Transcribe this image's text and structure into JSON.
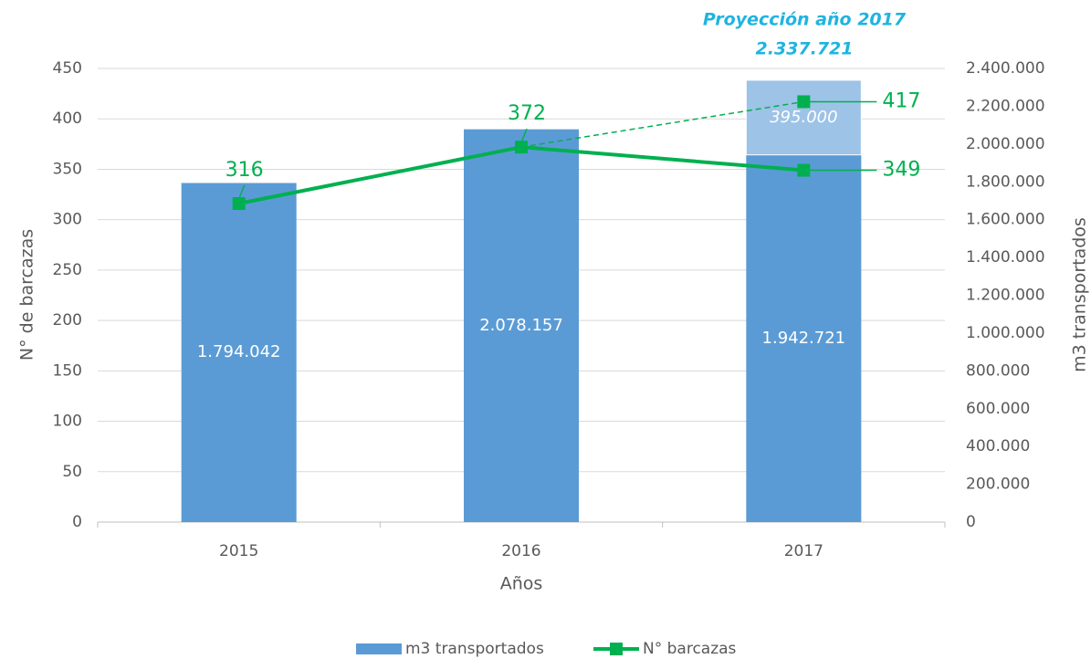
{
  "chart_data": {
    "type": "bar",
    "x_label": "Años",
    "y_label": "N° de barcazas",
    "y2_label": "m3 transportados",
    "annotations": [
      "Proyección año 2017",
      "2.337.721"
    ],
    "categories": [
      "2015",
      "2016",
      "2017"
    ],
    "ylim": [
      0,
      450
    ],
    "yticks": [
      0,
      50,
      100,
      150,
      200,
      250,
      300,
      350,
      400,
      450
    ],
    "y2lim": [
      0,
      2400000
    ],
    "y2ticks": [
      0,
      {
        "value": 200000,
        "label": "200.000"
      },
      {
        "value": 400000,
        "label": "400.000"
      },
      {
        "value": 600000,
        "label": "600.000"
      },
      {
        "value": 800000,
        "label": "800.000"
      },
      {
        "value": 1000000,
        "label": "1.000.000"
      },
      {
        "value": 1200000,
        "label": "1.200.000"
      },
      {
        "value": 1400000,
        "label": "1.400.000"
      },
      {
        "value": 1600000,
        "label": "1.600.000"
      },
      {
        "value": 1800000,
        "label": "1.800.000"
      },
      {
        "value": 2000000,
        "label": "2.000.000"
      },
      {
        "value": 2200000,
        "label": "2.200.000"
      },
      {
        "value": 2400000,
        "label": "2.400.000"
      }
    ],
    "grid": true,
    "legend": "bottom",
    "series": [
      {
        "name": "m3 transportados",
        "type": "bar",
        "axis": "y2",
        "color": "#5b9bd5",
        "values": [
          1794042,
          2078157,
          1942721
        ],
        "value_labels": [
          "1.794.042",
          "2.078.157",
          "1.942.721"
        ]
      },
      {
        "type": "bar",
        "axis": "y2",
        "color": "#9dc3e6",
        "stacked": true,
        "values": [
          null,
          null,
          395000
        ],
        "value_labels": [
          null,
          null,
          "395.000"
        ]
      },
      {
        "name": "N° barcazas",
        "type": "line",
        "color": "#00b050",
        "values": [
          316,
          372,
          349
        ]
      },
      {
        "type": "line",
        "color": "#00b050",
        "dashed": true,
        "values": [
          null,
          372,
          417
        ]
      }
    ]
  }
}
